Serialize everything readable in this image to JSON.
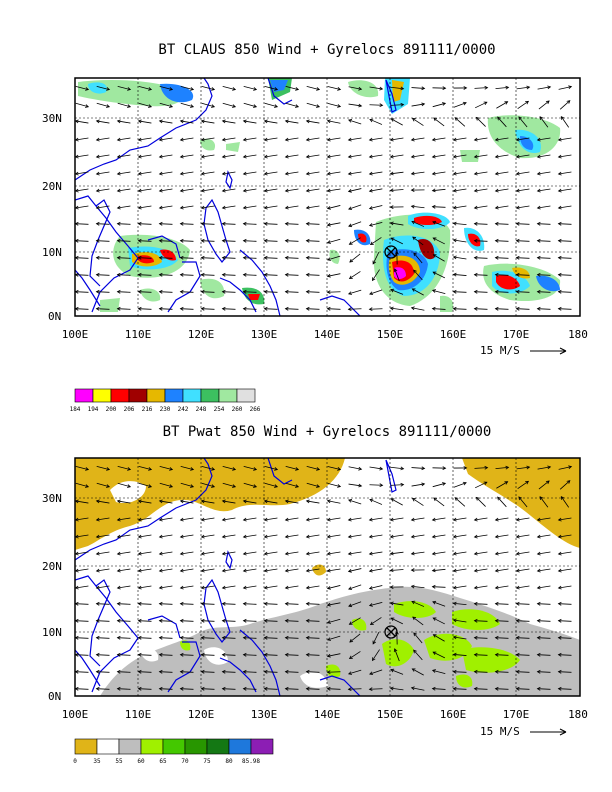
{
  "panels": [
    {
      "title": "BT CLAUS 850 Wind + Gyrelocs 891111/0000",
      "lon_labels": [
        "100E",
        "110E",
        "120E",
        "130E",
        "140E",
        "150E",
        "160E",
        "170E",
        "180"
      ],
      "lat_labels": [
        "30N",
        "20N",
        "10N",
        "0N"
      ],
      "wind_scale_label": "15 M/S",
      "legend": {
        "colors": [
          "#ff00ff",
          "#ffff00",
          "#ff0000",
          "#a00000",
          "#e6b800",
          "#1e82ff",
          "#40e0ff",
          "#3cc060",
          "#a0e8a0",
          "#e0e0e0"
        ],
        "labels": [
          "184",
          "194",
          "200",
          "206",
          "216",
          "230",
          "242",
          "248",
          "254",
          "260",
          "266"
        ]
      }
    },
    {
      "title": "BT Pwat 850 Wind + Gyrelocs 891111/0000",
      "lon_labels": [
        "100E",
        "110E",
        "120E",
        "130E",
        "140E",
        "150E",
        "160E",
        "170E",
        "180"
      ],
      "lat_labels": [
        "30N",
        "20N",
        "10N",
        "0N"
      ],
      "wind_scale_label": "15 M/S",
      "legend": {
        "colors": [
          "#e0b418",
          "#ffffff",
          "#bebebe",
          "#a0f000",
          "#44c800",
          "#289600",
          "#147814",
          "#1e78dc",
          "#8c1eb4"
        ],
        "labels": [
          "0",
          "35",
          "55",
          "60",
          "65",
          "70",
          "75",
          "80",
          "85.98"
        ]
      }
    }
  ],
  "colors": {
    "coast": "#0000dd",
    "frame": "#000000",
    "grid": "#000000"
  }
}
